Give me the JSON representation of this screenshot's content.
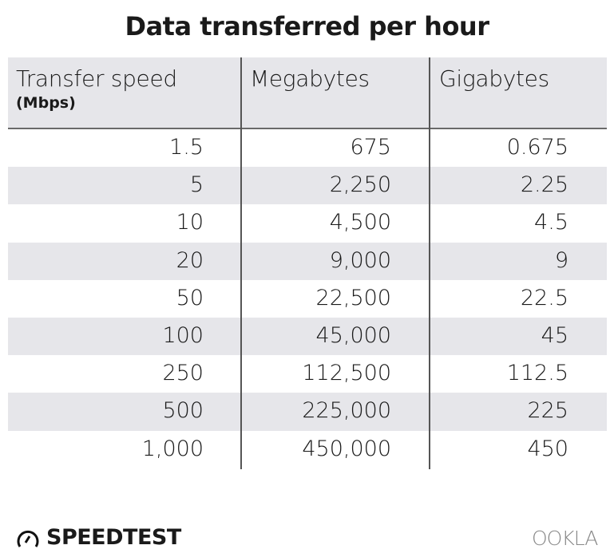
{
  "chart_data": {
    "type": "table",
    "title": "Data transferred per hour",
    "columns": [
      "Transfer speed",
      "Megabytes",
      "Gigabytes"
    ],
    "column_subtitle": "(Mbps)",
    "rows": [
      [
        "1.5",
        "675",
        "0.675"
      ],
      [
        "5",
        "2,250",
        "2.25"
      ],
      [
        "10",
        "4,500",
        "4.5"
      ],
      [
        "20",
        "9,000",
        "9"
      ],
      [
        "50",
        "22,500",
        "22.5"
      ],
      [
        "100",
        "45,000",
        "45"
      ],
      [
        "250",
        "112,500",
        "112.5"
      ],
      [
        "500",
        "225,000",
        "225"
      ],
      [
        "1,000",
        "450,000",
        "450"
      ]
    ],
    "stripe_color": "#e6e6ea"
  },
  "branding": {
    "speedtest": "SPEEDTEST",
    "ookla": "OOKLA"
  }
}
